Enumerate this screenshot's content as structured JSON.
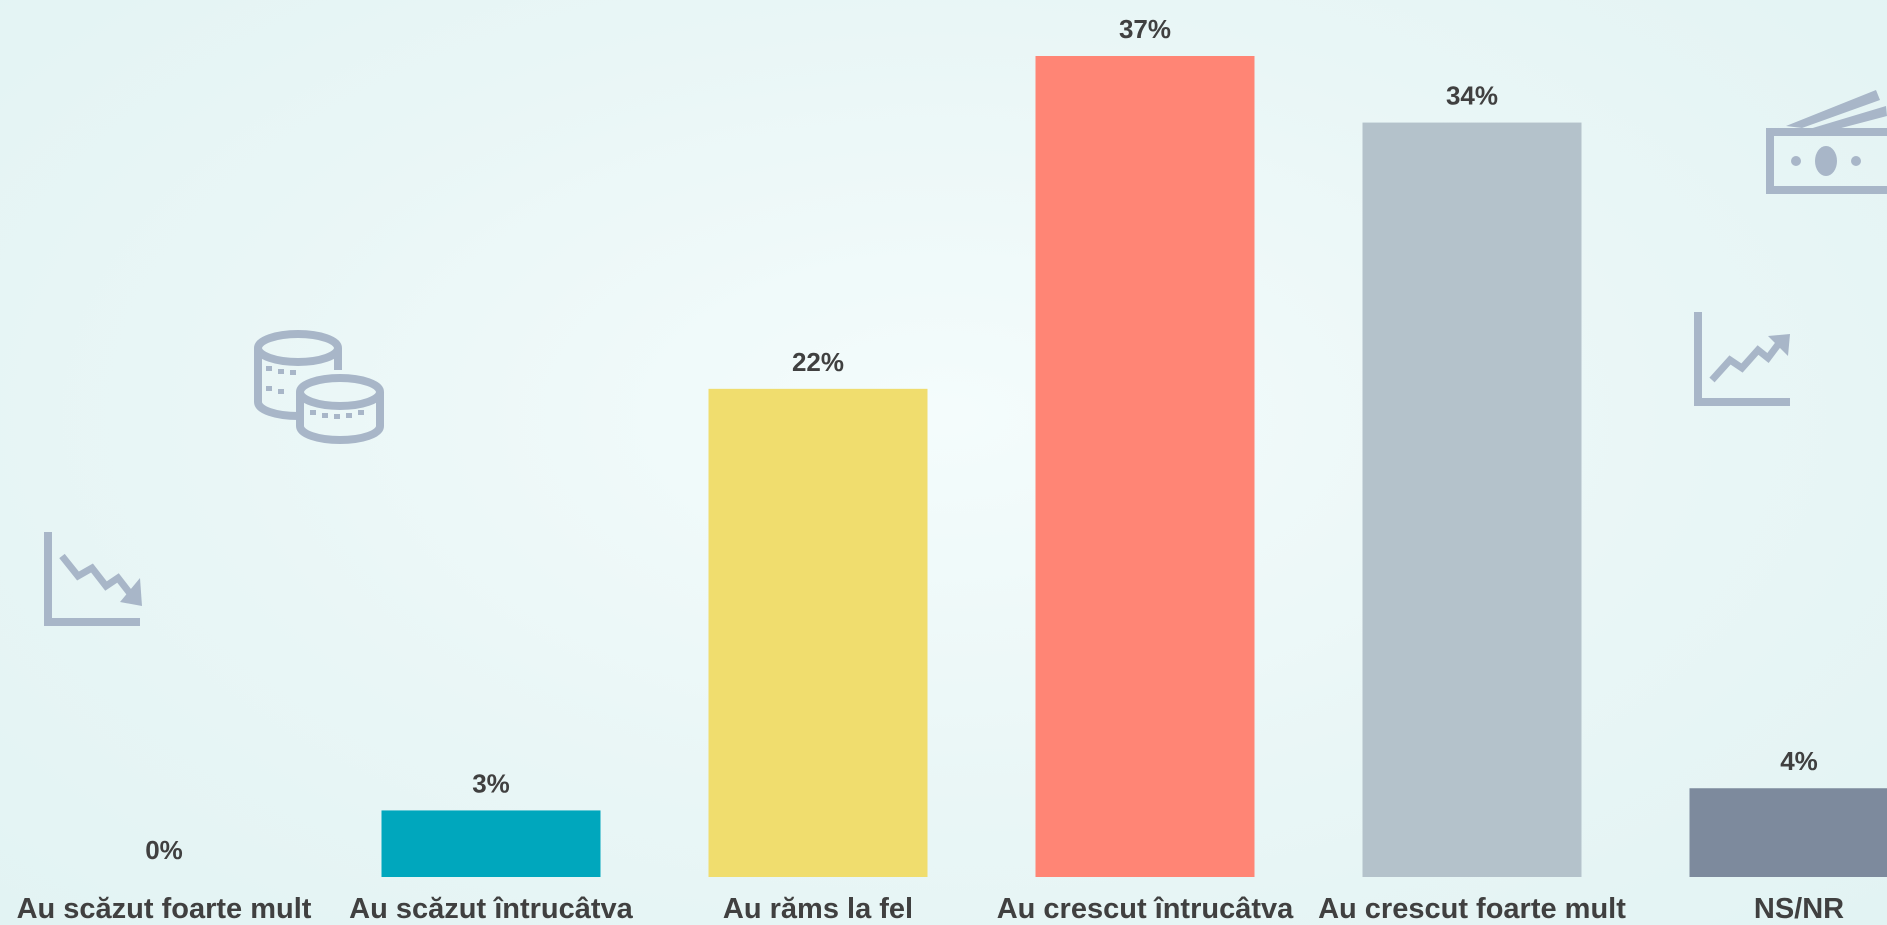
{
  "chart_data": {
    "type": "bar",
    "categories": [
      "Au scăzut foarte mult",
      "Au scăzut întrucâtva",
      "Au răms la fel",
      "Au crescut întrucâtva",
      "Au crescut foarte mult",
      "NS/NR"
    ],
    "values": [
      0,
      3,
      22,
      37,
      34,
      4
    ],
    "value_labels": [
      "0%",
      "3%",
      "22%",
      "37%",
      "34%",
      "4%"
    ],
    "colors": [
      "#00a7bd",
      "#00a7bd",
      "#f0dd6e",
      "#ff8575",
      "#b4c2cb",
      "#7d8a9d"
    ],
    "ylim": [
      0,
      37
    ],
    "grid": false,
    "legend": "none"
  },
  "decor": {
    "icons": [
      "chart-down-icon",
      "coins-icon",
      "chart-up-icon",
      "money-stack-icon"
    ],
    "icon_color": "#a8b6c8"
  }
}
